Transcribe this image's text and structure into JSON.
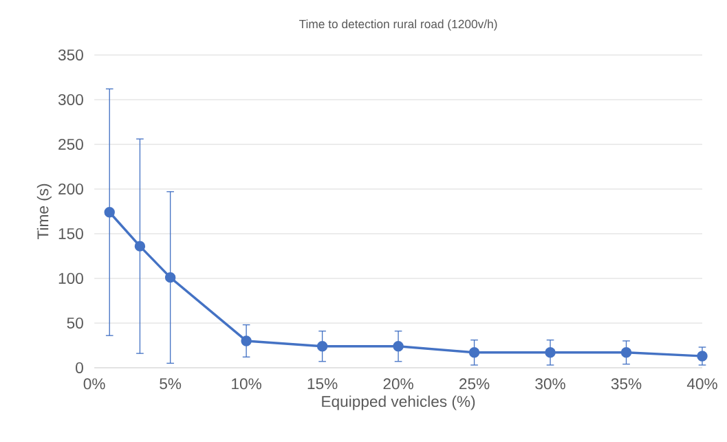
{
  "chart_data": {
    "type": "line",
    "title": "Time to detection rural road (1200v/h)",
    "xlabel": "Equipped vehicles (%)",
    "ylabel": "Time (s)",
    "x": [
      1,
      3,
      5,
      10,
      15,
      20,
      25,
      30,
      35,
      40
    ],
    "series": [
      {
        "color": "#4472c4",
        "values": [
          174,
          136,
          101,
          30,
          24,
          24,
          17,
          17,
          17,
          13
        ],
        "errors": [
          138,
          120,
          96,
          18,
          17,
          17,
          14,
          14,
          13,
          10
        ]
      }
    ],
    "xlim": [
      0,
      40
    ],
    "xticks": [
      {
        "value": 0,
        "label": "0%"
      },
      {
        "value": 5,
        "label": "5%"
      },
      {
        "value": 10,
        "label": "10%"
      },
      {
        "value": 15,
        "label": "15%"
      },
      {
        "value": 20,
        "label": "20%"
      },
      {
        "value": 25,
        "label": "25%"
      },
      {
        "value": 30,
        "label": "30%"
      },
      {
        "value": 35,
        "label": "35%"
      },
      {
        "value": 40,
        "label": "40%"
      }
    ],
    "ylim": [
      0,
      350
    ],
    "yticks": [
      0,
      50,
      100,
      150,
      200,
      250,
      300,
      350
    ],
    "grid": "y",
    "marker": "circle",
    "line_style": "solid"
  }
}
